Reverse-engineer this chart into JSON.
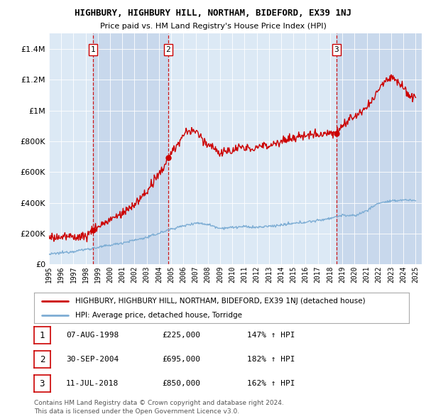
{
  "title": "HIGHBURY, HIGHBURY HILL, NORTHAM, BIDEFORD, EX39 1NJ",
  "subtitle": "Price paid vs. HM Land Registry's House Price Index (HPI)",
  "legend_line1": "HIGHBURY, HIGHBURY HILL, NORTHAM, BIDEFORD, EX39 1NJ (detached house)",
  "legend_line2": "HPI: Average price, detached house, Torridge",
  "footer1": "Contains HM Land Registry data © Crown copyright and database right 2024.",
  "footer2": "This data is licensed under the Open Government Licence v3.0.",
  "transactions": [
    {
      "num": "1",
      "date": "07-AUG-1998",
      "price": "£225,000",
      "hpi": "147% ↑ HPI",
      "x": 1998.6
    },
    {
      "num": "2",
      "date": "30-SEP-2004",
      "price": "£695,000",
      "hpi": "182% ↑ HPI",
      "x": 2004.75
    },
    {
      "num": "3",
      "date": "11-JUL-2018",
      "price": "£850,000",
      "hpi": "162% ↑ HPI",
      "x": 2018.53
    }
  ],
  "transaction_values": [
    225000,
    695000,
    850000
  ],
  "ylim": [
    0,
    1500000
  ],
  "yticks": [
    0,
    200000,
    400000,
    600000,
    800000,
    1000000,
    1200000,
    1400000
  ],
  "ytick_labels": [
    "£0",
    "£200K",
    "£400K",
    "£600K",
    "£800K",
    "£1M",
    "£1.2M",
    "£1.4M"
  ],
  "red_color": "#cc0000",
  "blue_color": "#7dadd4",
  "dashed_color": "#cc0000",
  "background_color": "#ffffff",
  "plot_bg_color": "#dce9f5",
  "alt_bg_color": "#c8d8ec",
  "xmin": 1995,
  "xmax": 2025
}
